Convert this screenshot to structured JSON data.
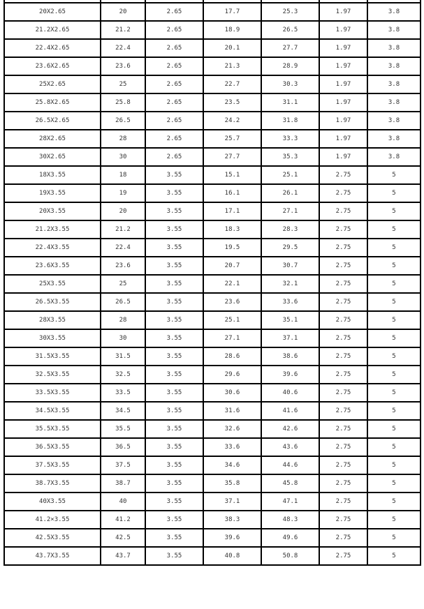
{
  "rows": [
    [
      "20X2.65",
      "20",
      "2.65",
      "17.7",
      "25.3",
      "1.97",
      "3.8"
    ],
    [
      "21.2X2.65",
      "21.2",
      "2.65",
      "18.9",
      "26.5",
      "1.97",
      "3.8"
    ],
    [
      "22.4X2.65",
      "22.4",
      "2.65",
      "20.1",
      "27.7",
      "1.97",
      "3.8"
    ],
    [
      "23.6X2.65",
      "23.6",
      "2.65",
      "21.3",
      "28.9",
      "1.97",
      "3.8"
    ],
    [
      "25X2.65",
      "25",
      "2.65",
      "22.7",
      "30.3",
      "1.97",
      "3.8"
    ],
    [
      "25.8X2.65",
      "25.8",
      "2.65",
      "23.5",
      "31.1",
      "1.97",
      "3.8"
    ],
    [
      "26.5X2.65",
      "26.5",
      "2.65",
      "24.2",
      "31.8",
      "1.97",
      "3.8"
    ],
    [
      "28X2.65",
      "28",
      "2.65",
      "25.7",
      "33.3",
      "1.97",
      "3.8"
    ],
    [
      "30X2.65",
      "30",
      "2.65",
      "27.7",
      "35.3",
      "1.97",
      "3.8"
    ],
    [
      "18X3.55",
      "18",
      "3.55",
      "15.1",
      "25.1",
      "2.75",
      "5"
    ],
    [
      "19X3.55",
      "19",
      "3.55",
      "16.1",
      "26.1",
      "2.75",
      "5"
    ],
    [
      "20X3.55",
      "20",
      "3.55",
      "17.1",
      "27.1",
      "2.75",
      "5"
    ],
    [
      "21.2X3.55",
      "21.2",
      "3.55",
      "18.3",
      "28.3",
      "2.75",
      "5"
    ],
    [
      "22.4X3.55",
      "22.4",
      "3.55",
      "19.5",
      "29.5",
      "2.75",
      "5"
    ],
    [
      "23.6X3.55",
      "23.6",
      "3.55",
      "20.7",
      "30.7",
      "2.75",
      "5"
    ],
    [
      "25X3.55",
      "25",
      "3.55",
      "22.1",
      "32.1",
      "2.75",
      "5"
    ],
    [
      "26.5X3.55",
      "26.5",
      "3.55",
      "23.6",
      "33.6",
      "2.75",
      "5"
    ],
    [
      "28X3.55",
      "28",
      "3.55",
      "25.1",
      "35.1",
      "2.75",
      "5"
    ],
    [
      "30X3.55",
      "30",
      "3.55",
      "27.1",
      "37.1",
      "2.75",
      "5"
    ],
    [
      "31.5X3.55",
      "31.5",
      "3.55",
      "28.6",
      "38.6",
      "2.75",
      "5"
    ],
    [
      "32.5X3.55",
      "32.5",
      "3.55",
      "29.6",
      "39.6",
      "2.75",
      "5"
    ],
    [
      "33.5X3.55",
      "33.5",
      "3.55",
      "30.6",
      "40.6",
      "2.75",
      "5"
    ],
    [
      "34.5X3.55",
      "34.5",
      "3.55",
      "31.6",
      "41.6",
      "2.75",
      "5"
    ],
    [
      "35.5X3.55",
      "35.5",
      "3.55",
      "32.6",
      "42.6",
      "2.75",
      "5"
    ],
    [
      "36.5X3.55",
      "36.5",
      "3.55",
      "33.6",
      "43.6",
      "2.75",
      "5"
    ],
    [
      "37.5X3.55",
      "37.5",
      "3.55",
      "34.6",
      "44.6",
      "2.75",
      "5"
    ],
    [
      "38.7X3.55",
      "38.7",
      "3.55",
      "35.8",
      "45.8",
      "2.75",
      "5"
    ],
    [
      "40X3.55",
      "40",
      "3.55",
      "37.1",
      "47.1",
      "2.75",
      "5"
    ],
    [
      "41.2×3.55",
      "41.2",
      "3.55",
      "38.3",
      "48.3",
      "2.75",
      "5"
    ],
    [
      "42.5X3.55",
      "42.5",
      "3.55",
      "39.6",
      "49.6",
      "2.75",
      "5"
    ],
    [
      "43.7X3.55",
      "43.7",
      "3.55",
      "40.8",
      "50.8",
      "2.75",
      "5"
    ]
  ]
}
